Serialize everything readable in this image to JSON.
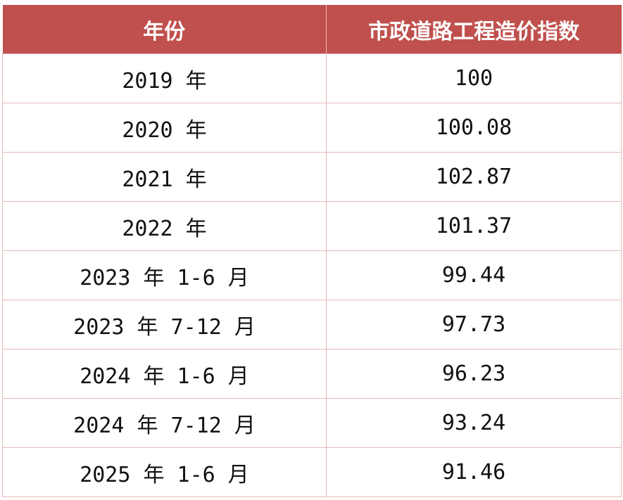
{
  "table": {
    "headers": [
      "年份",
      "市政道路工程造价指数"
    ],
    "rows": [
      [
        "2019 年",
        "100"
      ],
      [
        "2020 年",
        "100.08"
      ],
      [
        "2021 年",
        "102.87"
      ],
      [
        "2022 年",
        "101.37"
      ],
      [
        "2023 年 1-6 月",
        "99.44"
      ],
      [
        "2023 年 7-12 月",
        "97.73"
      ],
      [
        "2024 年 1-6 月",
        "96.23"
      ],
      [
        "2024 年 7-12 月",
        "93.24"
      ],
      [
        "2025 年 1-6 月",
        "91.46"
      ]
    ]
  },
  "colors": {
    "header_bg": "#c0504d",
    "header_text": "#ffffff",
    "grid": "#e6b9b8"
  }
}
